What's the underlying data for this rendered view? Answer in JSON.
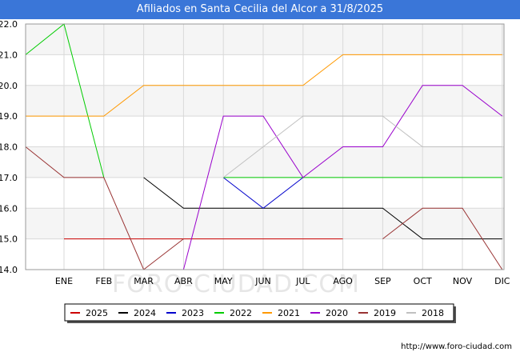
{
  "header": {
    "title": "Afiliados en Santa Cecilia del Alcor a 31/8/2025"
  },
  "footer": {
    "url": "http://www.foro-ciudad.com"
  },
  "watermark": "FORO-CIUDAD.COM",
  "chart_data": {
    "type": "line",
    "title": "Afiliados en Santa Cecilia del Alcor a 31/8/2025",
    "xlabel": "",
    "ylabel": "",
    "x": [
      "ENE",
      "FEB",
      "MAR",
      "ABR",
      "MAY",
      "JUN",
      "JUL",
      "AGO",
      "SEP",
      "OCT",
      "NOV",
      "DIC"
    ],
    "ylim": [
      14.0,
      22.0
    ],
    "yticks": [
      "14.0",
      "15.0",
      "16.0",
      "17.0",
      "18.0",
      "19.0",
      "20.0",
      "21.0",
      "22.0"
    ],
    "grid": true,
    "legend_position": "bottom",
    "series": [
      {
        "name": "2025",
        "color": "#cc0000",
        "values": [
          15,
          15,
          15,
          15,
          15,
          15,
          15,
          15,
          null,
          null,
          null,
          null
        ]
      },
      {
        "name": "2024",
        "color": "#000000",
        "values": [
          null,
          null,
          17,
          16,
          16,
          16,
          16,
          16,
          16,
          15,
          15,
          15
        ]
      },
      {
        "name": "2023",
        "color": "#0000cc",
        "values": [
          null,
          null,
          null,
          null,
          17,
          16,
          17,
          null,
          null,
          null,
          null,
          null
        ]
      },
      {
        "name": "2022",
        "color": "#00cc00",
        "values": [
          22,
          17,
          null,
          null,
          17,
          17,
          17,
          17,
          17,
          17,
          17,
          17
        ]
      },
      {
        "name": "2021",
        "color": "#ff9900",
        "values": [
          19,
          19,
          20,
          20,
          20,
          20,
          20,
          21,
          21,
          21,
          21,
          21
        ]
      },
      {
        "name": "2020",
        "color": "#9900cc",
        "values": [
          null,
          null,
          null,
          14,
          19,
          19,
          17,
          18,
          18,
          20,
          20,
          19
        ]
      },
      {
        "name": "2019",
        "color": "#993333",
        "values": [
          17,
          17,
          14,
          15,
          null,
          null,
          null,
          null,
          15,
          16,
          16,
          14
        ]
      },
      {
        "name": "2018",
        "color": "#c0c0c0",
        "values": [
          null,
          null,
          null,
          null,
          17,
          18,
          19,
          19,
          19,
          18,
          18,
          18
        ]
      }
    ],
    "series_extension": {
      "2022": {
        "value_before_ENE": 21
      },
      "2019": {
        "value_before_ENE": 18
      },
      "2021": {
        "value_before_ENE": 19
      }
    }
  }
}
